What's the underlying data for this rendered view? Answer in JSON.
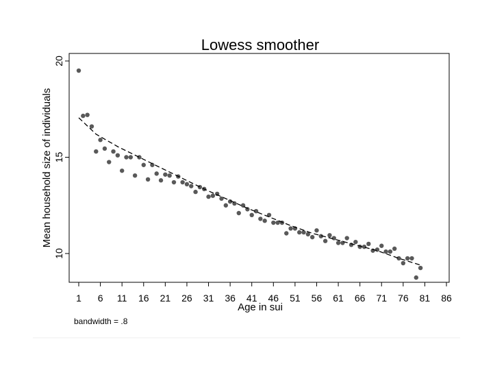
{
  "chart_data": {
    "type": "scatter",
    "title": "Lowess smoother",
    "xlabel": "Age in sui",
    "ylabel": "Mean household size of individuals",
    "note": "bandwidth = .8",
    "xlim": [
      1,
      86
    ],
    "ylim": [
      8.5,
      20.5
    ],
    "x_ticks": [
      1,
      6,
      11,
      16,
      21,
      26,
      31,
      36,
      41,
      46,
      51,
      56,
      61,
      66,
      71,
      76,
      81,
      86
    ],
    "y_ticks": [
      10,
      15,
      20
    ],
    "grid": false,
    "colors": {
      "points": "#595959",
      "smoother": "#000000"
    },
    "series": [
      {
        "type": "scatter",
        "x": [
          1,
          2,
          3,
          4,
          5,
          6,
          7,
          8,
          9,
          10,
          11,
          12,
          13,
          14,
          15,
          16,
          17,
          18,
          19,
          20,
          21,
          22,
          23,
          24,
          25,
          26,
          27,
          28,
          29,
          30,
          31,
          32,
          33,
          34,
          35,
          36,
          37,
          38,
          39,
          40,
          41,
          42,
          43,
          44,
          45,
          46,
          47,
          48,
          49,
          50,
          51,
          52,
          53,
          54,
          55,
          56,
          57,
          58,
          59,
          60,
          61,
          62,
          63,
          64,
          65,
          66,
          67,
          68,
          69,
          70,
          71,
          72,
          73,
          74,
          75,
          76,
          77,
          78,
          79,
          80
        ],
        "y": [
          19.5,
          17.15,
          17.2,
          16.6,
          15.3,
          15.9,
          15.45,
          14.75,
          15.3,
          15.1,
          14.3,
          15.0,
          15.0,
          14.05,
          15.0,
          14.6,
          13.85,
          14.6,
          14.15,
          13.8,
          14.1,
          14.05,
          13.7,
          14.0,
          13.7,
          13.6,
          13.5,
          13.2,
          13.45,
          13.35,
          12.95,
          13.0,
          13.1,
          12.85,
          12.5,
          12.7,
          12.6,
          12.1,
          12.5,
          12.3,
          12.0,
          12.2,
          11.8,
          11.7,
          12.0,
          11.6,
          11.6,
          11.6,
          11.05,
          11.3,
          11.3,
          11.1,
          11.1,
          11.0,
          10.85,
          11.2,
          10.9,
          10.65,
          10.95,
          10.8,
          10.55,
          10.55,
          10.8,
          10.45,
          10.6,
          10.35,
          10.35,
          10.5,
          10.15,
          10.2,
          10.4,
          10.1,
          10.1,
          10.25,
          9.75,
          9.5,
          9.75,
          9.75,
          8.75,
          9.25
        ]
      },
      {
        "type": "line",
        "style": "dashed",
        "x": [
          1,
          5,
          10,
          15,
          20,
          25,
          30,
          35,
          40,
          45,
          50,
          55,
          60,
          65,
          70,
          75,
          80
        ],
        "y": [
          17.05,
          16.2,
          15.55,
          15.0,
          14.45,
          13.9,
          13.35,
          12.85,
          12.35,
          11.9,
          11.45,
          11.05,
          10.75,
          10.45,
          10.15,
          9.75,
          9.4
        ]
      }
    ]
  }
}
